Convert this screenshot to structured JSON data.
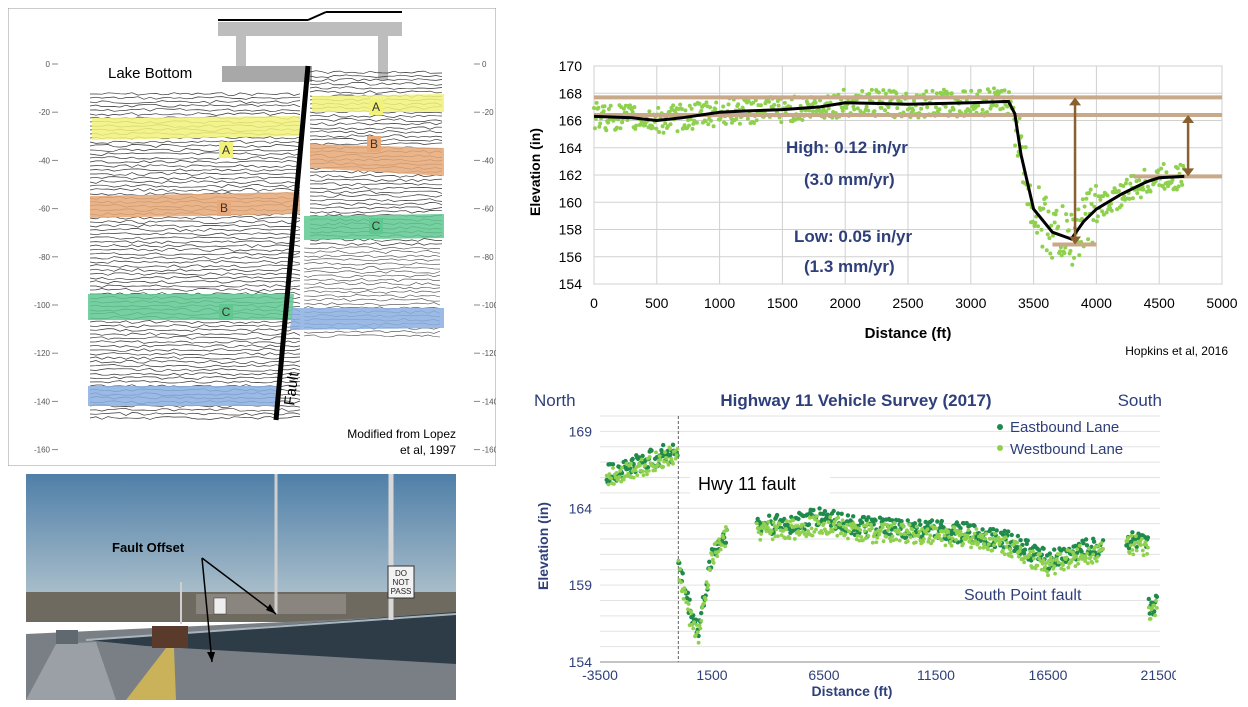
{
  "seismic": {
    "top_label": "Lake Bottom",
    "fault_label": "Fault",
    "credit": [
      "Modified from Lopez",
      "et al, 1997"
    ],
    "depth_ticks": [
      "0",
      "-20",
      "-40",
      "-60",
      "-80",
      "-100",
      "-120",
      "-140",
      "-160"
    ],
    "layers": [
      {
        "name": "A",
        "color": "#f2f27a"
      },
      {
        "name": "B",
        "color": "#e8a878"
      },
      {
        "name": "C",
        "color": "#5fc890"
      },
      {
        "name": "",
        "color": "#8aaee0"
      }
    ]
  },
  "photo": {
    "caption": "Fault Offset",
    "sign_text": [
      "DO",
      "NOT",
      "PASS"
    ]
  },
  "chart_data": [
    {
      "type": "scatter",
      "title": "",
      "xlabel": "Distance (ft)",
      "ylabel": "Elevation (in)",
      "xlim": [
        0,
        5000
      ],
      "ylim": [
        154,
        170
      ],
      "xticks": [
        "0",
        "500",
        "1000",
        "1500",
        "2000",
        "2500",
        "3000",
        "3500",
        "4000",
        "4500",
        "5000"
      ],
      "yticks": [
        "154",
        "156",
        "158",
        "160",
        "162",
        "164",
        "166",
        "168",
        "170"
      ],
      "grid": true,
      "trend_line": {
        "x": [
          0,
          300,
          500,
          700,
          1000,
          1200,
          1500,
          1800,
          2000,
          2500,
          3000,
          3300,
          3350,
          3400,
          3500,
          3650,
          3800,
          3900,
          4000,
          4200,
          4400,
          4500,
          4700
        ],
        "y": [
          166.3,
          166.2,
          166.0,
          166.2,
          166.6,
          166.7,
          166.8,
          167.0,
          167.3,
          167.2,
          167.3,
          167.4,
          166.5,
          163.5,
          159.5,
          157.8,
          157.3,
          158.6,
          159.5,
          160.6,
          161.5,
          161.8,
          161.9
        ]
      },
      "reference_levels": [
        167.7,
        166.4,
        161.9,
        156.9
      ],
      "annotations": [
        "High:  0.12 in/yr",
        "(3.0 mm/yr)",
        "Low:  0.05 in/yr",
        "(1.3 mm/yr)"
      ],
      "source": "Hopkins et al, 2016"
    },
    {
      "type": "scatter",
      "title": "Highway 11 Vehicle Survey (2017)",
      "xlabel": "Distance (ft)",
      "ylabel": "Elevation (in)",
      "xlim": [
        -3500,
        21500
      ],
      "ylim": [
        154,
        170
      ],
      "xticks": [
        "-3500",
        "1500",
        "6500",
        "11500",
        "16500",
        "21500"
      ],
      "yticks": [
        "154",
        "159",
        "164",
        "169"
      ],
      "grid": true,
      "legend_position": "top-right",
      "corner_labels": {
        "left": "North",
        "right": "South"
      },
      "annotations": [
        "Hwy 11 fault",
        "South Point fault"
      ],
      "series": [
        {
          "name": "Eastbound Lane",
          "color": "#1f8a4c",
          "segments": [
            {
              "x": [
                -3200,
                0
              ],
              "y": [
                166.2,
                167.8
              ]
            },
            {
              "x": [
                0,
                500,
                900,
                1500,
                2200
              ],
              "y": [
                160.3,
                157.5,
                156.0,
                161.0,
                162.5
              ]
            },
            {
              "x": [
                3500,
                5000,
                6500,
                8000,
                10000,
                12000,
                13500,
                15000,
                16500,
                18000,
                19000
              ],
              "y": [
                162.8,
                163.0,
                163.5,
                162.8,
                162.7,
                162.5,
                162.3,
                161.8,
                160.6,
                161.3,
                161.5
              ]
            },
            {
              "x": [
                20000,
                20500,
                21000
              ],
              "y": [
                162.0,
                161.8,
                161.5
              ]
            },
            {
              "x": [
                21000,
                21400
              ],
              "y": [
                157.6,
                157.8
              ]
            }
          ]
        },
        {
          "name": "Westbound Lane",
          "color": "#8fd14f",
          "segments": [
            {
              "x": [
                -3200,
                0
              ],
              "y": [
                166.0,
                167.5
              ]
            },
            {
              "x": [
                0,
                500,
                900,
                1500,
                2200
              ],
              "y": [
                160.0,
                157.0,
                155.6,
                160.8,
                162.3
              ]
            },
            {
              "x": [
                3500,
                5000,
                6500,
                8000,
                10000,
                12000,
                13500,
                15000,
                16500,
                18000,
                19000
              ],
              "y": [
                162.5,
                162.6,
                163.0,
                162.4,
                162.4,
                162.2,
                162.0,
                161.4,
                160.2,
                161.0,
                161.2
              ]
            },
            {
              "x": [
                20000,
                20500,
                21000
              ],
              "y": [
                161.8,
                161.5,
                161.2
              ]
            },
            {
              "x": [
                21000,
                21400
              ],
              "y": [
                157.2,
                157.4
              ]
            }
          ]
        }
      ]
    }
  ]
}
